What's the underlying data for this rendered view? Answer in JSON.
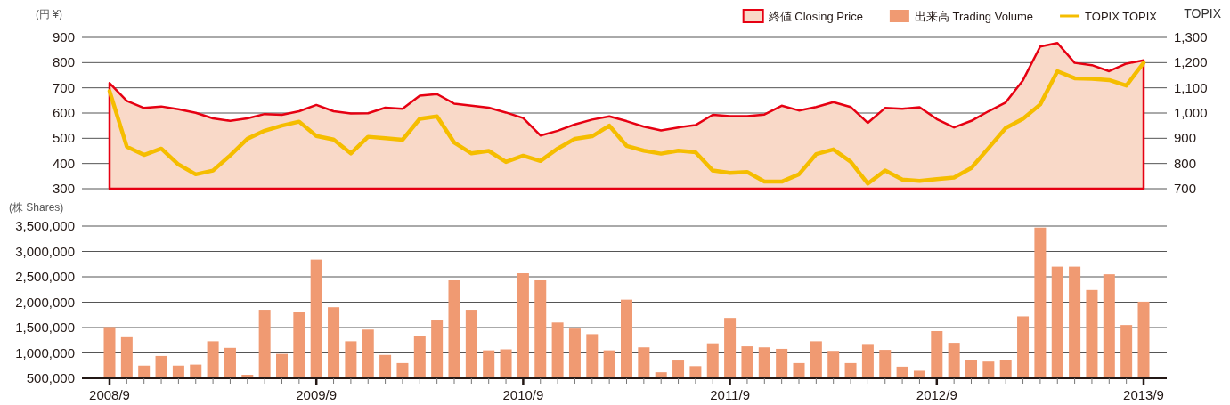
{
  "chart_data": [
    {
      "type": "area",
      "categories": [
        null,
        null,
        null,
        null,
        null,
        null,
        null,
        null,
        null,
        null,
        null,
        null,
        null,
        null,
        null,
        null,
        null,
        null,
        null,
        null,
        null,
        null,
        null,
        null,
        null,
        null,
        null,
        null,
        null,
        null,
        null,
        null,
        null,
        null,
        null,
        null,
        null,
        null,
        null,
        null,
        null,
        null,
        null,
        null,
        null,
        null,
        null,
        null,
        null,
        null,
        null,
        null,
        null,
        null,
        null,
        null,
        null,
        null,
        null,
        null,
        null
      ],
      "ylabel": "(円 ¥)",
      "y2label": "TOPIX",
      "ylim": [
        300,
        900
      ],
      "yticks": [
        300,
        400,
        500,
        600,
        700,
        800,
        900
      ],
      "y2lim": [
        700,
        1300
      ],
      "y2ticks": [
        700,
        800,
        900,
        {
          "value": 1000,
          "label": "1,000"
        },
        {
          "value": 1100,
          "label": "1,100"
        },
        {
          "value": 1200,
          "label": "1,200"
        },
        {
          "value": 1300,
          "label": "1,300"
        }
      ],
      "grid": "y",
      "legend": "top right",
      "tick_labels": "y",
      "series": [
        {
          "name": "終値 Closing Price",
          "color": "#f9d9c8",
          "values": [
            719,
            648,
            620,
            626,
            615,
            601,
            579,
            569,
            579,
            596,
            593,
            607,
            632,
            607,
            598,
            599,
            621,
            617,
            669,
            675,
            637,
            629,
            621,
            602,
            580,
            511,
            530,
            555,
            574,
            587,
            568,
            546,
            531,
            543,
            552,
            593,
            588,
            588,
            594,
            629,
            610,
            624,
            643,
            624,
            561,
            620,
            617,
            623,
            576,
            543,
            569,
            607,
            642,
            730,
            864,
            878,
            799,
            790,
            766,
            796,
            809
          ]
        },
        {
          "name": "TOPIX TOPIX",
          "type": "line",
          "axis": "y2",
          "color": "#f5bd00",
          "values": [
            1087,
            867,
            834,
            859,
            796,
            757,
            772,
            832,
            898,
            930,
            950,
            966,
            909,
            895,
            840,
            906,
            900,
            894,
            977,
            987,
            883,
            840,
            850,
            806,
            831,
            810,
            859,
            898,
            908,
            950,
            870,
            851,
            839,
            851,
            845,
            772,
            763,
            766,
            728,
            728,
            757,
            837,
            856,
            807,
            720,
            772,
            736,
            731,
            738,
            744,
            782,
            861,
            941,
            977,
            1034,
            1166,
            1138,
            1136,
            1131,
            1109,
            1199
          ]
        }
      ]
    },
    {
      "type": "bar",
      "categories": [
        "2008/9",
        null,
        null,
        null,
        null,
        null,
        null,
        null,
        null,
        null,
        null,
        null,
        "2009/9",
        null,
        null,
        null,
        null,
        null,
        null,
        null,
        null,
        null,
        null,
        null,
        "2010/9",
        null,
        null,
        null,
        null,
        null,
        null,
        null,
        null,
        null,
        null,
        null,
        "2011/9",
        null,
        null,
        null,
        null,
        null,
        null,
        null,
        null,
        null,
        null,
        null,
        "2012/9",
        null,
        null,
        null,
        null,
        null,
        null,
        null,
        null,
        null,
        null,
        null,
        "2013/9"
      ],
      "ylabel": "(株 Shares)",
      "ylim": [
        500000,
        3500000
      ],
      "yticks": [
        {
          "value": 500000,
          "label": "500,000"
        },
        {
          "value": 1000000,
          "label": "1,000,000"
        },
        {
          "value": 1500000,
          "label": "1,500,000"
        },
        {
          "value": 2000000,
          "label": "2,000,000"
        },
        {
          "value": 2500000,
          "label": "2,500,000"
        },
        {
          "value": 3000000,
          "label": "3,000,000"
        },
        {
          "value": 3500000,
          "label": "3,500,000"
        }
      ],
      "grid": "y",
      "legend": "top right",
      "series": [
        {
          "name": "出来高 Trading Volume",
          "color": "#f09a72",
          "values": [
            1510000,
            1310000,
            750000,
            940000,
            750000,
            770000,
            1230000,
            1100000,
            570000,
            1850000,
            980000,
            1810000,
            2840000,
            1900000,
            1230000,
            1460000,
            960000,
            800000,
            1330000,
            1640000,
            2430000,
            1850000,
            1050000,
            1070000,
            2570000,
            2430000,
            1600000,
            1480000,
            1370000,
            1050000,
            2050000,
            1110000,
            620000,
            850000,
            740000,
            1190000,
            1690000,
            1130000,
            1110000,
            1080000,
            800000,
            1230000,
            1040000,
            800000,
            1160000,
            1060000,
            730000,
            650000,
            1430000,
            1200000,
            860000,
            830000,
            860000,
            1720000,
            3470000,
            2700000,
            2700000,
            2240000,
            2550000,
            1550000,
            2010000
          ]
        }
      ]
    }
  ]
}
